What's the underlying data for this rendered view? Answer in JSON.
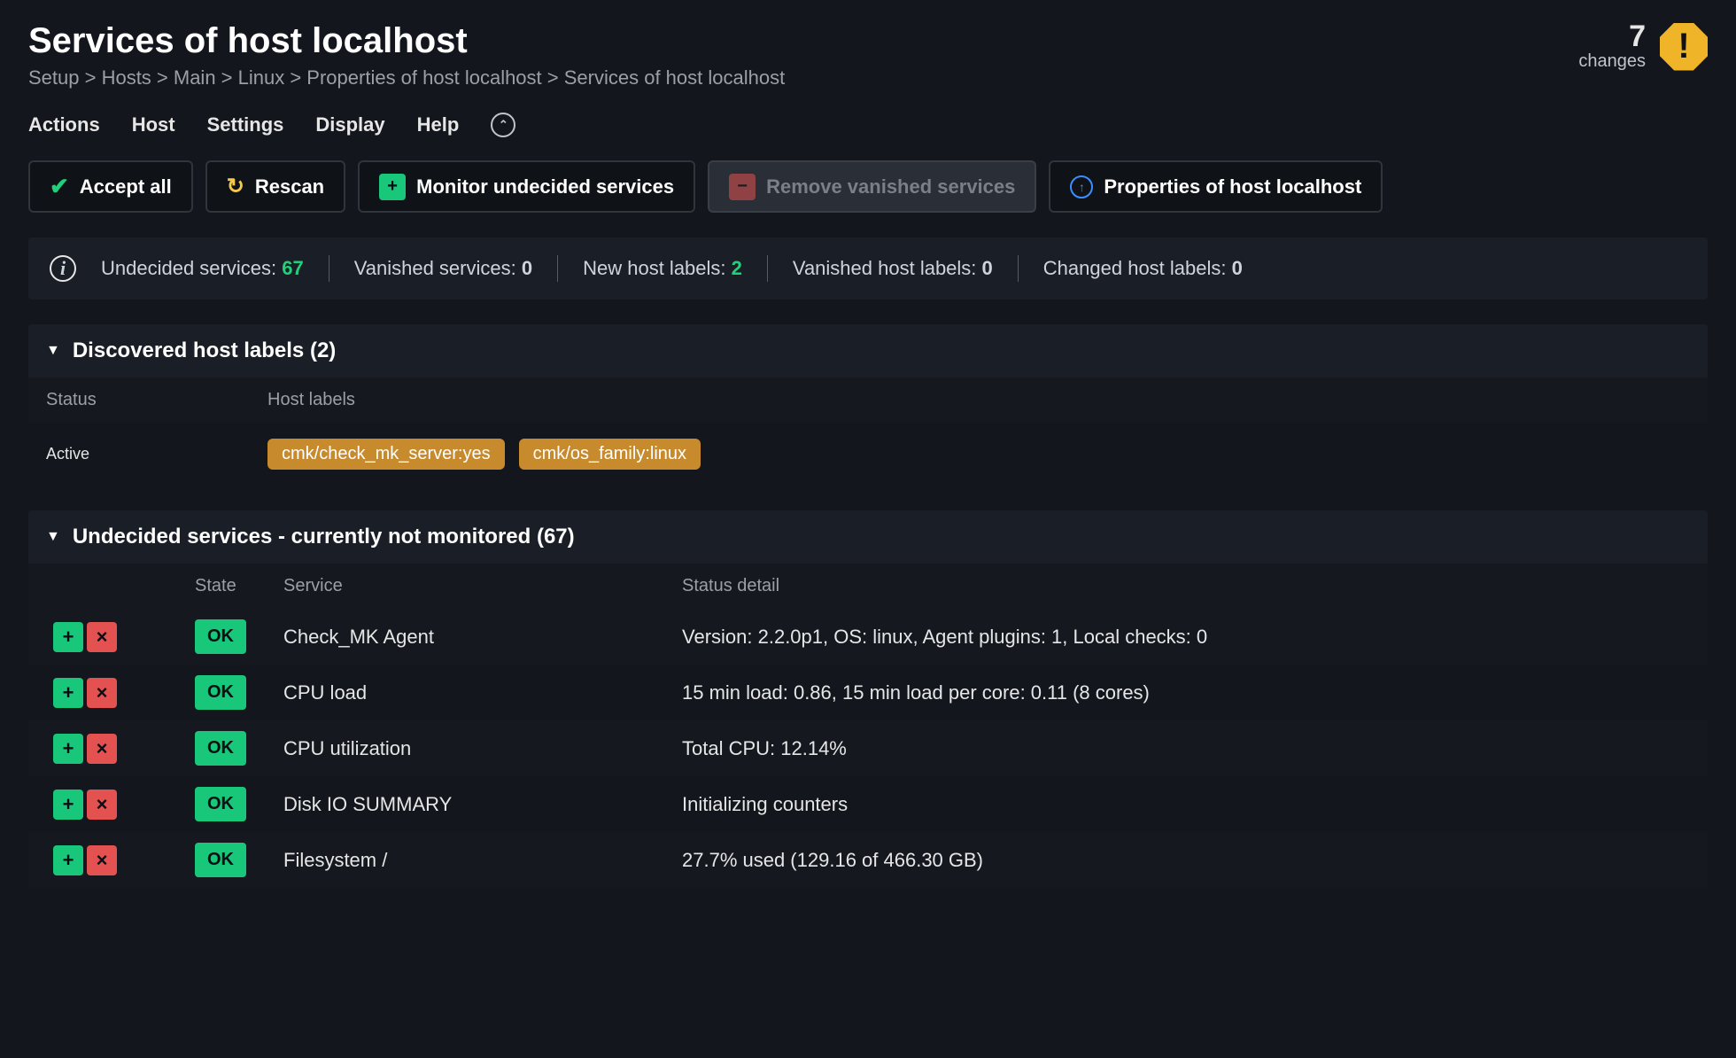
{
  "page": {
    "title": "Services of host localhost",
    "breadcrumbs": [
      "Setup",
      "Hosts",
      "Main",
      "Linux",
      "Properties of host localhost",
      "Services of host localhost"
    ],
    "changes_count": "7",
    "changes_label": "changes"
  },
  "menu": {
    "items": [
      "Actions",
      "Host",
      "Settings",
      "Display",
      "Help"
    ]
  },
  "buttons": {
    "accept_all": "Accept all",
    "rescan": "Rescan",
    "monitor_undecided": "Monitor undecided services",
    "remove_vanished": "Remove vanished services",
    "properties_host": "Properties of host localhost"
  },
  "stats": {
    "undecided_label": "Undecided services:",
    "undecided_value": "67",
    "vanished_label": "Vanished services:",
    "vanished_value": "0",
    "new_labels_label": "New host labels:",
    "new_labels_value": "2",
    "vanished_labels_label": "Vanished host labels:",
    "vanished_labels_value": "0",
    "changed_labels_label": "Changed host labels:",
    "changed_labels_value": "0"
  },
  "discovered_section": {
    "title": "Discovered host labels (2)",
    "col_status": "Status",
    "col_labels": "Host labels",
    "status_value": "Active",
    "labels": [
      "cmk/check_mk_server:yes",
      "cmk/os_family:linux"
    ]
  },
  "undecided_section": {
    "title": "Undecided services - currently not monitored (67)",
    "col_state": "State",
    "col_service": "Service",
    "col_detail": "Status detail",
    "rows": [
      {
        "state": "OK",
        "service": "Check_MK Agent",
        "detail": "Version: 2.2.0p1, OS: linux, Agent plugins: 1, Local checks: 0"
      },
      {
        "state": "OK",
        "service": "CPU load",
        "detail": "15 min load: 0.86, 15 min load per core: 0.11 (8 cores)"
      },
      {
        "state": "OK",
        "service": "CPU utilization",
        "detail": "Total CPU: 12.14%"
      },
      {
        "state": "OK",
        "service": "Disk IO SUMMARY",
        "detail": "Initializing counters"
      },
      {
        "state": "OK",
        "service": "Filesystem /",
        "detail": "27.7% used (129.16 of 466.30 GB)"
      }
    ]
  },
  "colors": {
    "bg": "#13161c",
    "panel": "#1a1e26",
    "green": "#19c77a",
    "red": "#e35151",
    "amber": "#f0b429",
    "label_badge": "#c78b2d",
    "blue": "#3a8fff"
  }
}
